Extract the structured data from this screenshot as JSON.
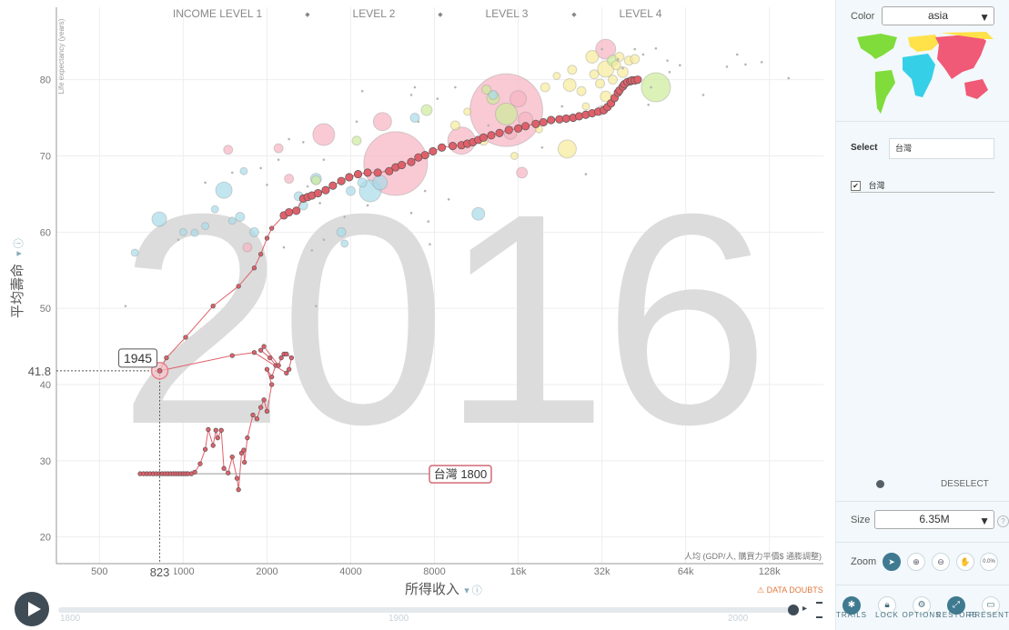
{
  "chart_data": {
    "type": "scatter",
    "watermark_year": "2016",
    "x_scale": "log2",
    "xlim": [
      350,
      200000
    ],
    "ylim": [
      16.5,
      89.5
    ],
    "x_ticks": [
      500,
      1000,
      2000,
      4000,
      8000,
      16000,
      32000,
      64000,
      128000
    ],
    "x_tick_labels": [
      "500",
      "1000",
      "2000",
      "4000",
      "8000",
      "16k",
      "32k",
      "64k",
      "128k"
    ],
    "y_ticks": [
      20,
      30,
      40,
      50,
      60,
      70,
      80
    ],
    "y_tick_labels": [
      "20",
      "30",
      "40",
      "50",
      "60",
      "70",
      "80"
    ],
    "ylabel": "平均壽命",
    "ylabel_small": "Life expectancy (years)",
    "xlabel": "所得收入",
    "xlabel_small": "人均 (GDP/人, 購買力平價$ 通膨調整)",
    "income_levels": [
      "INCOME LEVEL 1",
      "LEVEL 2",
      "LEVEL 3",
      "LEVEL 4"
    ],
    "highlight": {
      "x": 823,
      "y": 41.8,
      "x_label": "823",
      "y_label": "41.8",
      "year_label": "1945"
    },
    "trail_label": "台灣 1800",
    "trail_color": "#e0606a",
    "trail": [
      [
        700,
        28.3
      ],
      [
        720,
        28.3
      ],
      [
        740,
        28.3
      ],
      [
        760,
        28.3
      ],
      [
        780,
        28.3
      ],
      [
        800,
        28.3
      ],
      [
        820,
        28.3
      ],
      [
        840,
        28.3
      ],
      [
        860,
        28.3
      ],
      [
        880,
        28.3
      ],
      [
        900,
        28.3
      ],
      [
        920,
        28.3
      ],
      [
        940,
        28.3
      ],
      [
        960,
        28.3
      ],
      [
        980,
        28.3
      ],
      [
        1000,
        28.3
      ],
      [
        1020,
        28.3
      ],
      [
        1040,
        28.3
      ],
      [
        1070,
        28.3
      ],
      [
        1100,
        28.5
      ],
      [
        1150,
        29.6
      ],
      [
        1200,
        31.5
      ],
      [
        1230,
        34.1
      ],
      [
        1280,
        32
      ],
      [
        1310,
        34
      ],
      [
        1330,
        33
      ],
      [
        1370,
        34
      ],
      [
        1400,
        29
      ],
      [
        1450,
        28.4
      ],
      [
        1500,
        30.5
      ],
      [
        1560,
        27.7
      ],
      [
        1580,
        26.2
      ],
      [
        1620,
        31
      ],
      [
        1650,
        31.4
      ],
      [
        1660,
        29.8
      ],
      [
        1700,
        33
      ],
      [
        1780,
        36
      ],
      [
        1840,
        35.5
      ],
      [
        1900,
        37
      ],
      [
        1950,
        38
      ],
      [
        2000,
        36.5
      ],
      [
        2080,
        40
      ],
      [
        2000,
        42
      ],
      [
        2080,
        41
      ],
      [
        2150,
        42.5
      ],
      [
        2050,
        43.5
      ],
      [
        1900,
        44.5
      ],
      [
        1950,
        45
      ],
      [
        2200,
        42.5
      ],
      [
        2250,
        43.5
      ],
      [
        2300,
        44
      ],
      [
        2350,
        44
      ],
      [
        2450,
        43.5
      ],
      [
        2400,
        42
      ],
      [
        2350,
        41.5
      ],
      [
        1800,
        44.2
      ],
      [
        1500,
        43.8
      ],
      [
        823,
        41.8
      ],
      [
        870,
        43.5
      ],
      [
        1020,
        46.2
      ],
      [
        1280,
        50.3
      ],
      [
        1580,
        52.9
      ],
      [
        1800,
        55.3
      ],
      [
        1900,
        57.1
      ],
      [
        2000,
        59.2
      ],
      [
        2080,
        60.5
      ],
      [
        2300,
        62.2
      ],
      [
        2400,
        62.6
      ],
      [
        2550,
        62.8
      ],
      [
        2700,
        64.4
      ],
      [
        2800,
        64.6
      ],
      [
        2900,
        64.8
      ],
      [
        3050,
        65.1
      ],
      [
        3250,
        65.5
      ],
      [
        3450,
        66.1
      ],
      [
        3700,
        66.7
      ],
      [
        3950,
        67.2
      ],
      [
        4250,
        67.6
      ],
      [
        4600,
        67.8
      ],
      [
        5000,
        67.8
      ],
      [
        5500,
        68
      ],
      [
        5800,
        68.5
      ],
      [
        6100,
        68.8
      ],
      [
        6600,
        69.2
      ],
      [
        7000,
        69.8
      ],
      [
        7400,
        70.1
      ],
      [
        7900,
        70.6
      ],
      [
        8500,
        71.1
      ],
      [
        9300,
        71.3
      ],
      [
        10000,
        71.4
      ],
      [
        10500,
        71.6
      ],
      [
        11000,
        71.8
      ],
      [
        11500,
        72.1
      ],
      [
        12000,
        72.4
      ],
      [
        12800,
        72.7
      ],
      [
        13700,
        73
      ],
      [
        14800,
        73.4
      ],
      [
        16000,
        73.6
      ],
      [
        17000,
        73.9
      ],
      [
        18500,
        74.2
      ],
      [
        19700,
        74.4
      ],
      [
        21000,
        74.7
      ],
      [
        22500,
        74.8
      ],
      [
        23800,
        74.9
      ],
      [
        25200,
        75
      ],
      [
        26500,
        75.2
      ],
      [
        28000,
        75.4
      ],
      [
        29500,
        75.6
      ],
      [
        31000,
        75.8
      ],
      [
        32500,
        76
      ],
      [
        33500,
        76.4
      ],
      [
        34500,
        76.9
      ],
      [
        35500,
        77.6
      ],
      [
        36500,
        78.3
      ],
      [
        37000,
        78.6
      ],
      [
        38000,
        79.1
      ],
      [
        38500,
        79.4
      ],
      [
        39500,
        79.7
      ],
      [
        40500,
        79.8
      ],
      [
        41000,
        79.9
      ],
      [
        42000,
        79.9
      ],
      [
        43000,
        80
      ]
    ],
    "bubbles": [
      [
        14500,
        76,
        40,
        "#f7b3c2"
      ],
      [
        5800,
        69,
        35,
        "#f7b3c2"
      ],
      [
        3200,
        72.8,
        12,
        "#f7b3c2"
      ],
      [
        5200,
        74.5,
        10,
        "#f7b3c2"
      ],
      [
        16000,
        77.5,
        9,
        "#f7b3c2"
      ],
      [
        17000,
        74.8,
        8,
        "#f7b3c2"
      ],
      [
        33000,
        84,
        11,
        "#f7b3c2"
      ],
      [
        10000,
        72,
        15,
        "#f7b3c2"
      ],
      [
        15000,
        73,
        7,
        "#f7b3c2"
      ],
      [
        16500,
        67.8,
        6,
        "#f7b3c2"
      ],
      [
        2200,
        71,
        5,
        "#f7b3c2"
      ],
      [
        1700,
        58,
        5,
        "#f7b3c2"
      ],
      [
        1450,
        70.8,
        5,
        "#f7b3c2"
      ],
      [
        2400,
        67,
        5,
        "#f7b3c2"
      ],
      [
        32000,
        76,
        5,
        "#f7b3c2"
      ],
      [
        4700,
        65.4,
        12,
        "#a8dcea"
      ],
      [
        820,
        61.7,
        8,
        "#a8dcea"
      ],
      [
        1400,
        65.5,
        9,
        "#a8dcea"
      ],
      [
        5100,
        66.5,
        8,
        "#a8dcea"
      ],
      [
        11500,
        62.4,
        7,
        "#a8dcea"
      ],
      [
        3000,
        67,
        6,
        "#a8dcea"
      ],
      [
        2700,
        63.5,
        5,
        "#a8dcea"
      ],
      [
        1800,
        60,
        5,
        "#a8dcea"
      ],
      [
        3700,
        60,
        5,
        "#a8dcea"
      ],
      [
        4000,
        65.4,
        5,
        "#a8dcea"
      ],
      [
        2600,
        64.7,
        5,
        "#a8dcea"
      ],
      [
        1600,
        62,
        5,
        "#a8dcea"
      ],
      [
        6800,
        75,
        5,
        "#a8dcea"
      ],
      [
        1000,
        60,
        4,
        "#a8dcea"
      ],
      [
        1100,
        59.9,
        4,
        "#a8dcea"
      ],
      [
        1500,
        61.5,
        4,
        "#a8dcea"
      ],
      [
        1200,
        60.8,
        4,
        "#a8dcea"
      ],
      [
        670,
        57.3,
        4,
        "#a8dcea"
      ],
      [
        1300,
        63,
        4,
        "#a8dcea"
      ],
      [
        3800,
        58.5,
        4,
        "#a8dcea"
      ],
      [
        13000,
        78,
        5,
        "#a8dcea"
      ],
      [
        1650,
        68,
        4,
        "#a8dcea"
      ],
      [
        4400,
        66.5,
        5,
        "#a8dcea"
      ],
      [
        50000,
        79,
        16,
        "#cdeb9a"
      ],
      [
        14500,
        75.5,
        12,
        "#cdeb9a"
      ],
      [
        13000,
        77.6,
        7,
        "#cdeb9a"
      ],
      [
        7500,
        76,
        6,
        "#cdeb9a"
      ],
      [
        12300,
        78.7,
        5,
        "#cdeb9a"
      ],
      [
        35000,
        82.5,
        6,
        "#cdeb9a"
      ],
      [
        4200,
        72,
        5,
        "#cdeb9a"
      ],
      [
        3000,
        66.8,
        5,
        "#cdeb9a"
      ],
      [
        24000,
        70.9,
        10,
        "#f7eb9a"
      ],
      [
        33000,
        81.4,
        9,
        "#f7eb9a"
      ],
      [
        24500,
        79.3,
        7,
        "#f7eb9a"
      ],
      [
        29500,
        83,
        7,
        "#f7eb9a"
      ],
      [
        33000,
        77.8,
        6,
        "#f7eb9a"
      ],
      [
        38000,
        81,
        6,
        "#f7eb9a"
      ],
      [
        20000,
        79,
        5,
        "#f7eb9a"
      ],
      [
        25000,
        81.3,
        5,
        "#f7eb9a"
      ],
      [
        30000,
        80.7,
        5,
        "#f7eb9a"
      ],
      [
        37000,
        83,
        5,
        "#f7eb9a"
      ],
      [
        40000,
        82.5,
        5,
        "#f7eb9a"
      ],
      [
        42000,
        82.7,
        5,
        "#f7eb9a"
      ],
      [
        35000,
        80,
        5,
        "#f7eb9a"
      ],
      [
        36000,
        81.9,
        5,
        "#f7eb9a"
      ],
      [
        27000,
        78.5,
        5,
        "#f7eb9a"
      ],
      [
        31500,
        79.5,
        5,
        "#f7eb9a"
      ],
      [
        19000,
        73.5,
        4,
        "#f7eb9a"
      ],
      [
        9500,
        74,
        5,
        "#f7eb9a"
      ],
      [
        10500,
        75.8,
        4,
        "#f7eb9a"
      ],
      [
        15500,
        70,
        4,
        "#f7eb9a"
      ],
      [
        12000,
        72,
        5,
        "#f7eb9a"
      ],
      [
        22000,
        80.5,
        4,
        "#f7eb9a"
      ],
      [
        28000,
        76.5,
        4,
        "#f7eb9a"
      ]
    ],
    "tiny_dots": [
      [
        4400,
        78.5
      ],
      [
        4200,
        74.5
      ],
      [
        7000,
        74.5
      ],
      [
        6600,
        78
      ],
      [
        9500,
        79
      ],
      [
        8200,
        77.5
      ],
      [
        3800,
        62
      ],
      [
        4600,
        63.5
      ],
      [
        7600,
        61.4
      ],
      [
        7700,
        58.4
      ],
      [
        6600,
        62.5
      ],
      [
        2900,
        57.6
      ],
      [
        3000,
        50.3
      ],
      [
        3200,
        59
      ],
      [
        2200,
        69.5
      ],
      [
        2300,
        58
      ],
      [
        3100,
        63.8
      ],
      [
        2800,
        66
      ],
      [
        1900,
        68.4
      ],
      [
        2000,
        66.2
      ],
      [
        2400,
        72.2
      ],
      [
        1500,
        67.8
      ],
      [
        620,
        50.3
      ],
      [
        960,
        59
      ],
      [
        1200,
        66.5
      ],
      [
        2700,
        71.8
      ],
      [
        3200,
        69.5
      ],
      [
        5300,
        68
      ],
      [
        6800,
        79
      ],
      [
        7400,
        65.4
      ],
      [
        9000,
        64.3
      ],
      [
        12500,
        74
      ],
      [
        19500,
        71.1
      ],
      [
        23000,
        76.5
      ],
      [
        26000,
        75.3
      ],
      [
        28000,
        67.6
      ],
      [
        36500,
        82.7
      ],
      [
        43000,
        80.2
      ],
      [
        45000,
        83.3
      ],
      [
        47000,
        76.7
      ],
      [
        48000,
        79
      ],
      [
        56000,
        81
      ],
      [
        74000,
        78
      ],
      [
        90000,
        81.7
      ],
      [
        105000,
        82
      ],
      [
        150000,
        80.2
      ],
      [
        120000,
        82.3
      ],
      [
        61000,
        81.9
      ],
      [
        38000,
        81.5
      ],
      [
        50000,
        84.1
      ],
      [
        42000,
        84
      ],
      [
        55000,
        82.5
      ],
      [
        98000,
        83.3
      ],
      [
        32000,
        84
      ]
    ]
  },
  "colors": {
    "trail": "#e0606a",
    "asia_pink": "#f7b3c2",
    "light_blue": "#a8dcea",
    "green": "#cdeb9a",
    "yellow": "#f7eb9a",
    "grid": "#eeeeee",
    "accent": "#3f7a91"
  },
  "sidebar": {
    "color_label": "Color",
    "color_value": "asia",
    "select_label": "Select",
    "search_value": "台灣",
    "selected_item": "台灣",
    "deselect": "DESELECT",
    "size_label": "Size",
    "size_value": "6.35M",
    "zoom_label": "Zoom",
    "zoom_pct": "0.0%"
  },
  "toolbar": {
    "buttons": [
      "TRAILS",
      "LOCK",
      "OPTIONS",
      "RESTORE",
      "PRESENT"
    ]
  },
  "data_doubts": "DATA DOUBTS",
  "timeline": {
    "labels": [
      "1800",
      "1900",
      "2000"
    ]
  }
}
